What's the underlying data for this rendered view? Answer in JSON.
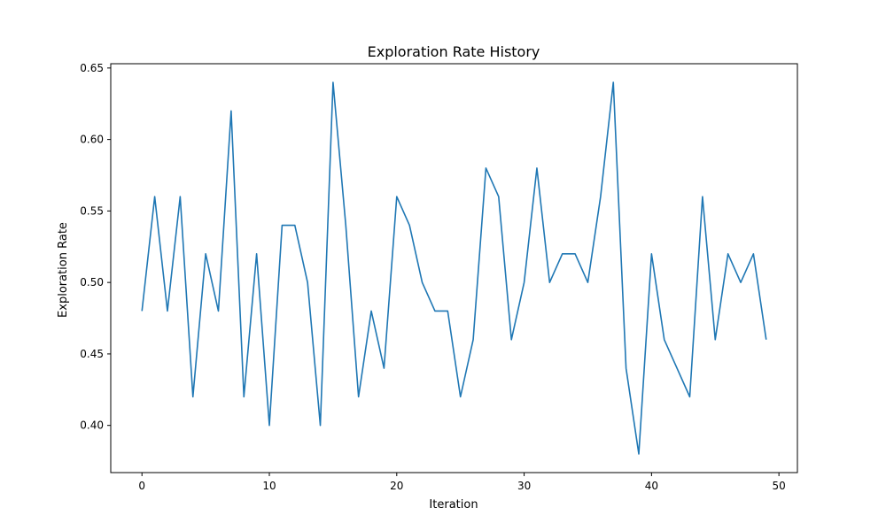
{
  "chart_data": {
    "type": "line",
    "title": "Exploration Rate History",
    "xlabel": "Iteration",
    "ylabel": "Exploration Rate",
    "xlim": [
      -2.45,
      51.45
    ],
    "ylim": [
      0.367,
      0.653
    ],
    "xticks": [
      0,
      10,
      20,
      30,
      40,
      50
    ],
    "yticks": [
      0.4,
      0.45,
      0.5,
      0.55,
      0.6,
      0.65
    ],
    "xtick_labels": [
      "0",
      "10",
      "20",
      "30",
      "40",
      "50"
    ],
    "ytick_labels": [
      "0.40",
      "0.45",
      "0.50",
      "0.55",
      "0.60",
      "0.65"
    ],
    "grid": false,
    "series": [
      {
        "color": "#1f77b4",
        "x": [
          0,
          1,
          2,
          3,
          4,
          5,
          6,
          7,
          8,
          9,
          10,
          11,
          12,
          13,
          14,
          15,
          16,
          17,
          18,
          19,
          20,
          21,
          22,
          23,
          24,
          25,
          26,
          27,
          28,
          29,
          30,
          31,
          32,
          33,
          34,
          35,
          36,
          37,
          38,
          39,
          40,
          41,
          42,
          43,
          44,
          45,
          46,
          47,
          48,
          49
        ],
        "values": [
          0.48,
          0.56,
          0.48,
          0.56,
          0.42,
          0.52,
          0.48,
          0.62,
          0.42,
          0.52,
          0.4,
          0.54,
          0.54,
          0.5,
          0.4,
          0.64,
          0.54,
          0.42,
          0.48,
          0.44,
          0.56,
          0.54,
          0.5,
          0.48,
          0.48,
          0.42,
          0.46,
          0.58,
          0.56,
          0.46,
          0.5,
          0.58,
          0.5,
          0.52,
          0.52,
          0.5,
          0.56,
          0.64,
          0.44,
          0.38,
          0.52,
          0.46,
          0.44,
          0.42,
          0.56,
          0.46,
          0.52,
          0.5,
          0.52,
          0.46
        ]
      }
    ]
  }
}
